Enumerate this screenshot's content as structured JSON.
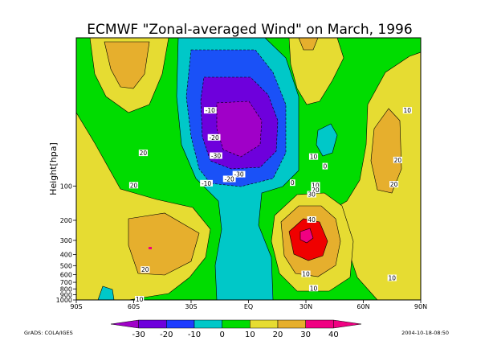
{
  "chart_data": {
    "type": "heatmap",
    "title": "ECMWF \"Zonal-averaged Wind\" on March, 1996",
    "ylabel": "Height[hpa]",
    "xlabel": "",
    "x_ticks": [
      "90S",
      "60S",
      "30S",
      "EQ",
      "30N",
      "60N",
      "90N"
    ],
    "x_tick_values": [
      -90,
      -60,
      -30,
      0,
      30,
      60,
      90
    ],
    "y_ticks": [
      "100",
      "200",
      "300",
      "400",
      "500",
      "600",
      "700",
      "800",
      "900",
      "1000"
    ],
    "y_scale": "log-pressure (top above 100 hPa)",
    "contour_levels": [
      -30,
      -20,
      -10,
      0,
      10,
      20,
      30,
      40
    ],
    "colorbar": {
      "ticks": [
        "-30",
        "-20",
        "-10",
        "0",
        "10",
        "20",
        "30",
        "40"
      ],
      "colors": [
        "#a000c8",
        "#6e00dc",
        "#1e3cff",
        "#00c8c8",
        "#00dc00",
        "#e6dc32",
        "#e6af2d",
        "#f00082"
      ]
    },
    "contour_labels": [
      {
        "text": "-10",
        "lon": -20,
        "p": 22
      },
      {
        "text": "-20",
        "lon": -18,
        "p": 38
      },
      {
        "text": "-30",
        "lon": -17,
        "p": 55
      },
      {
        "text": "-30",
        "lon": -5,
        "p": 80
      },
      {
        "text": "-20",
        "lon": -10,
        "p": 88
      },
      {
        "text": "-10",
        "lon": -22,
        "p": 96
      },
      {
        "text": "0",
        "lon": 23,
        "p": 95
      },
      {
        "text": "0",
        "lon": 40,
        "p": 68
      },
      {
        "text": "10",
        "lon": 34,
        "p": 56
      },
      {
        "text": "10",
        "lon": 83,
        "p": 22
      },
      {
        "text": "20",
        "lon": -55,
        "p": 52
      },
      {
        "text": "20",
        "lon": 78,
        "p": 60
      },
      {
        "text": "20",
        "lon": 76,
        "p": 98
      },
      {
        "text": "20",
        "lon": -60,
        "p": 100
      },
      {
        "text": "10",
        "lon": 35,
        "p": 100
      },
      {
        "text": "20",
        "lon": 35,
        "p": 110
      },
      {
        "text": "30",
        "lon": 33,
        "p": 120
      },
      {
        "text": "40",
        "lon": 33,
        "p": 200
      },
      {
        "text": "20",
        "lon": -54,
        "p": 550
      },
      {
        "text": "10",
        "lon": 30,
        "p": 600
      },
      {
        "text": "10",
        "lon": 34,
        "p": 800
      },
      {
        "text": "10",
        "lon": 75,
        "p": 650
      },
      {
        "text": "10",
        "lon": -57,
        "p": 1000
      }
    ]
  },
  "footer": {
    "left": "GrADS: COLA/IGES",
    "right": "2004-10-18-08:50"
  }
}
